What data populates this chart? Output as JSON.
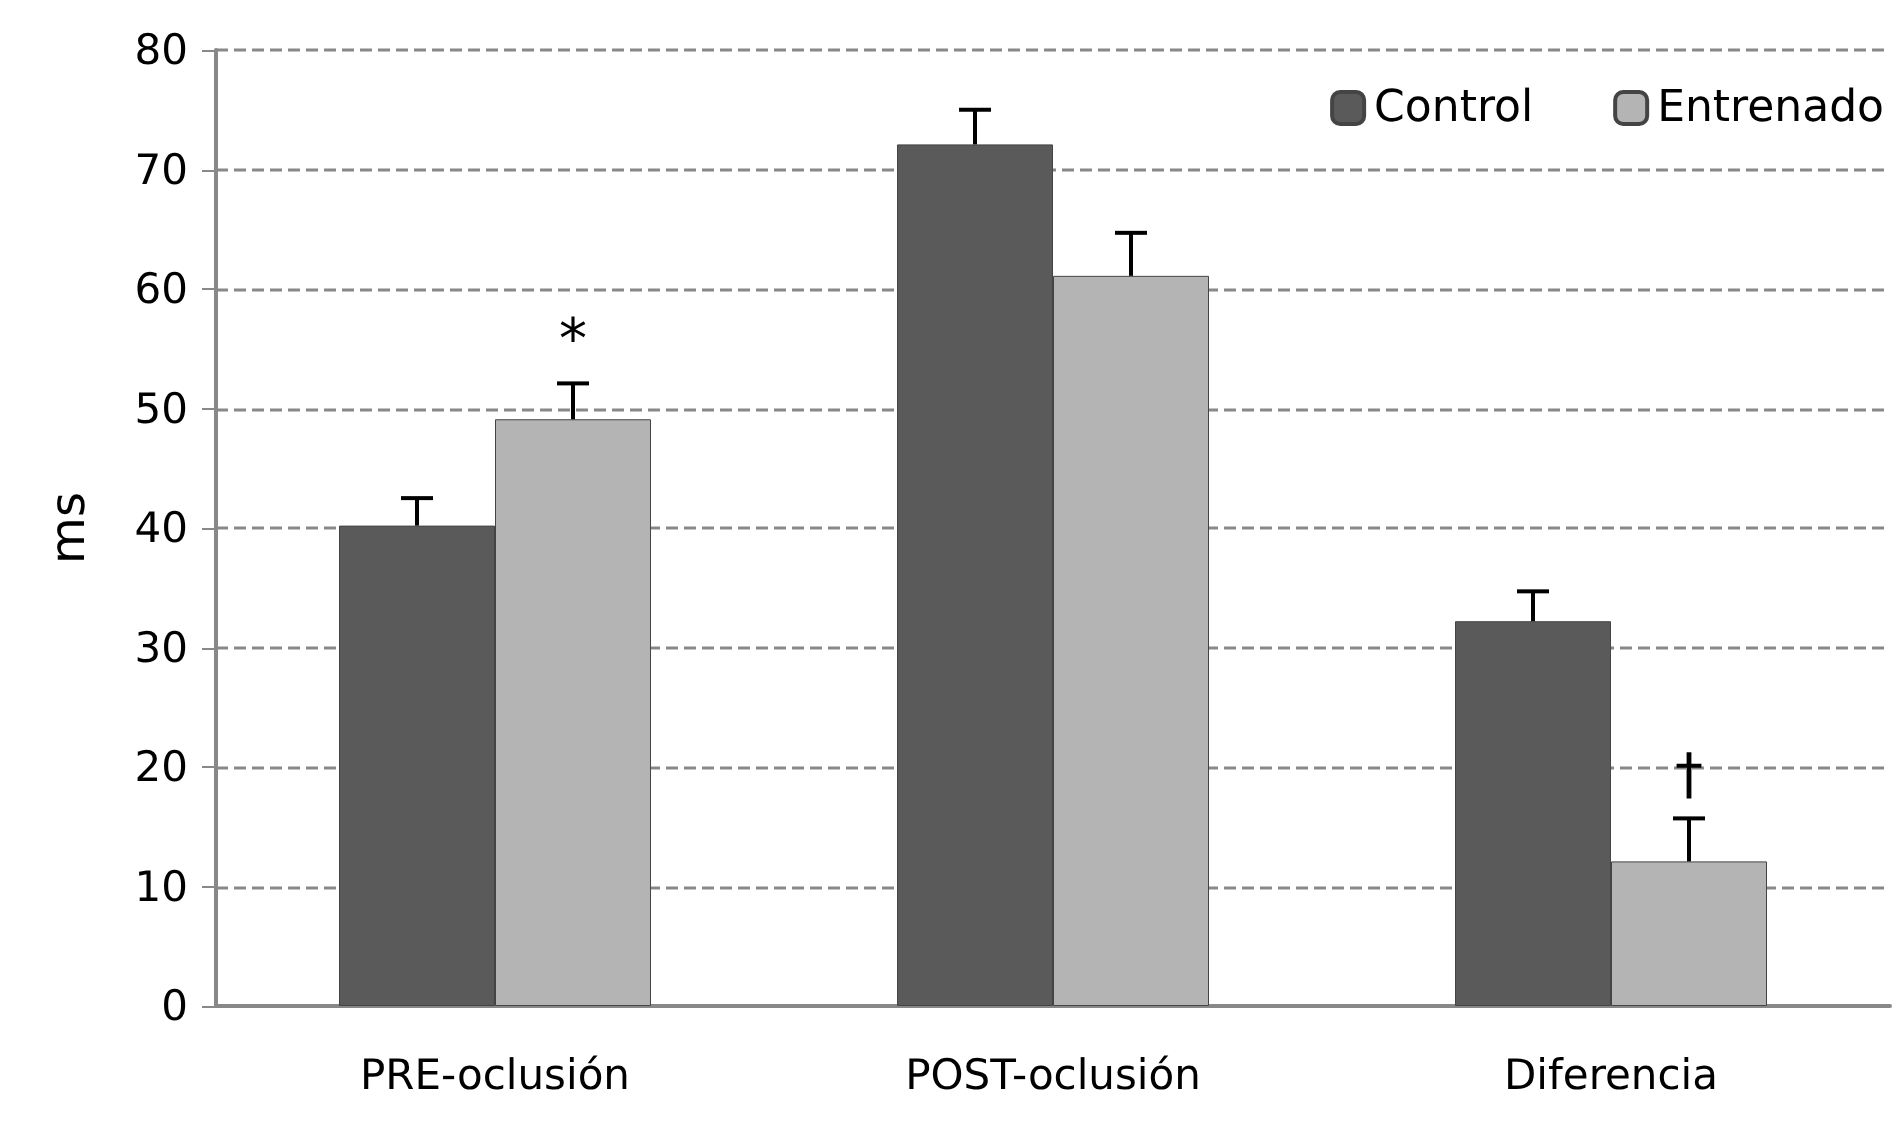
{
  "chart_data": {
    "type": "bar",
    "ylabel": "ms",
    "categories": [
      "PRE-oclusión",
      "POST-oclusión",
      "Diferencia"
    ],
    "series": [
      {
        "name": "Control",
        "color": "#5a5a5a",
        "values": [
          40.2,
          72.1,
          32.2
        ],
        "errors": [
          [
            40.2,
            42.5
          ],
          [
            72.1,
            75
          ],
          [
            32.2,
            34.7
          ]
        ]
      },
      {
        "name": "Entrenado",
        "color": "#b4b4b4",
        "values": [
          49.1,
          61.1,
          12.1
        ],
        "errors": [
          [
            49.1,
            52.1
          ],
          [
            61.1,
            64.7
          ],
          [
            12.1,
            15.7
          ]
        ]
      }
    ],
    "ylim": [
      0,
      80
    ],
    "yticks": [
      0,
      10,
      20,
      30,
      40,
      50,
      60,
      70,
      80
    ],
    "grid": "y",
    "legend": "top right",
    "annotations": [
      "*",
      {
        "text": "†",
        "x": "Diferencia",
        "y": 15.7
      }
    ]
  }
}
